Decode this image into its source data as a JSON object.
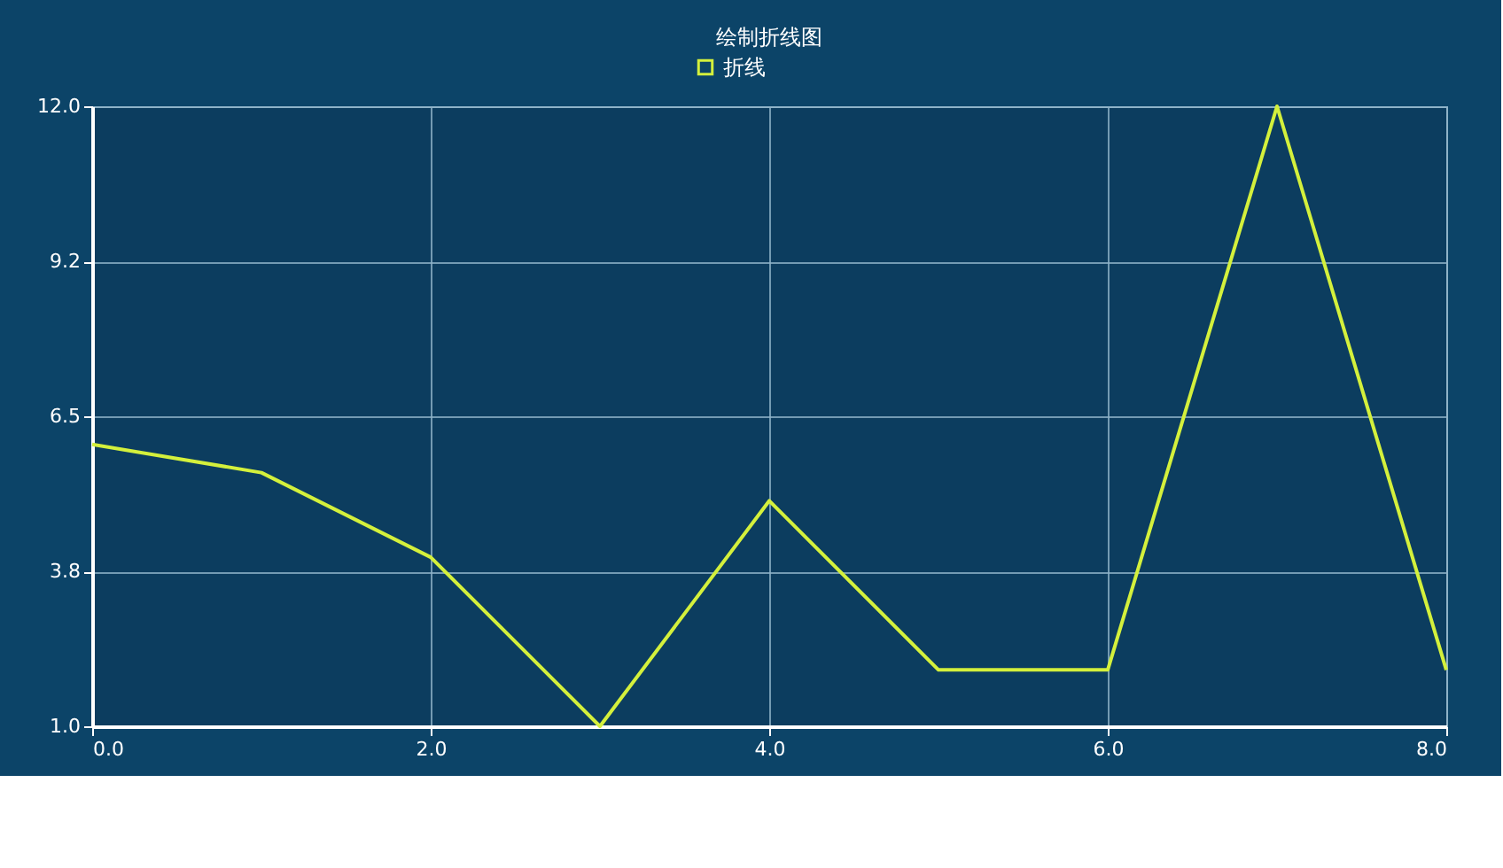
{
  "chart_data": {
    "type": "line",
    "title": "绘制折线图",
    "x": [
      0,
      1,
      2,
      3,
      4,
      5,
      6,
      7,
      8
    ],
    "series": [
      {
        "name": "折线",
        "color": "#d4f03c",
        "values": [
          6,
          5.5,
          4,
          1,
          5,
          2,
          2,
          12,
          2
        ]
      }
    ],
    "xlim": [
      0,
      8
    ],
    "xticks": [
      {
        "value": 0,
        "label": "0.0"
      },
      {
        "value": 2,
        "label": "2.0"
      },
      {
        "value": 4,
        "label": "4.0"
      },
      {
        "value": 6,
        "label": "6.0"
      },
      {
        "value": 8,
        "label": "8.0"
      }
    ],
    "ylim": [
      1,
      12
    ],
    "yticks": [
      {
        "value": 1,
        "label": "1.0"
      },
      {
        "value": 3.75,
        "label": "3.8"
      },
      {
        "value": 6.5,
        "label": "6.5"
      },
      {
        "value": 9.25,
        "label": "9.2"
      },
      {
        "value": 12,
        "label": "12.0"
      }
    ],
    "grid": true,
    "legend": "top",
    "marker": "none",
    "line_style": "solid"
  }
}
